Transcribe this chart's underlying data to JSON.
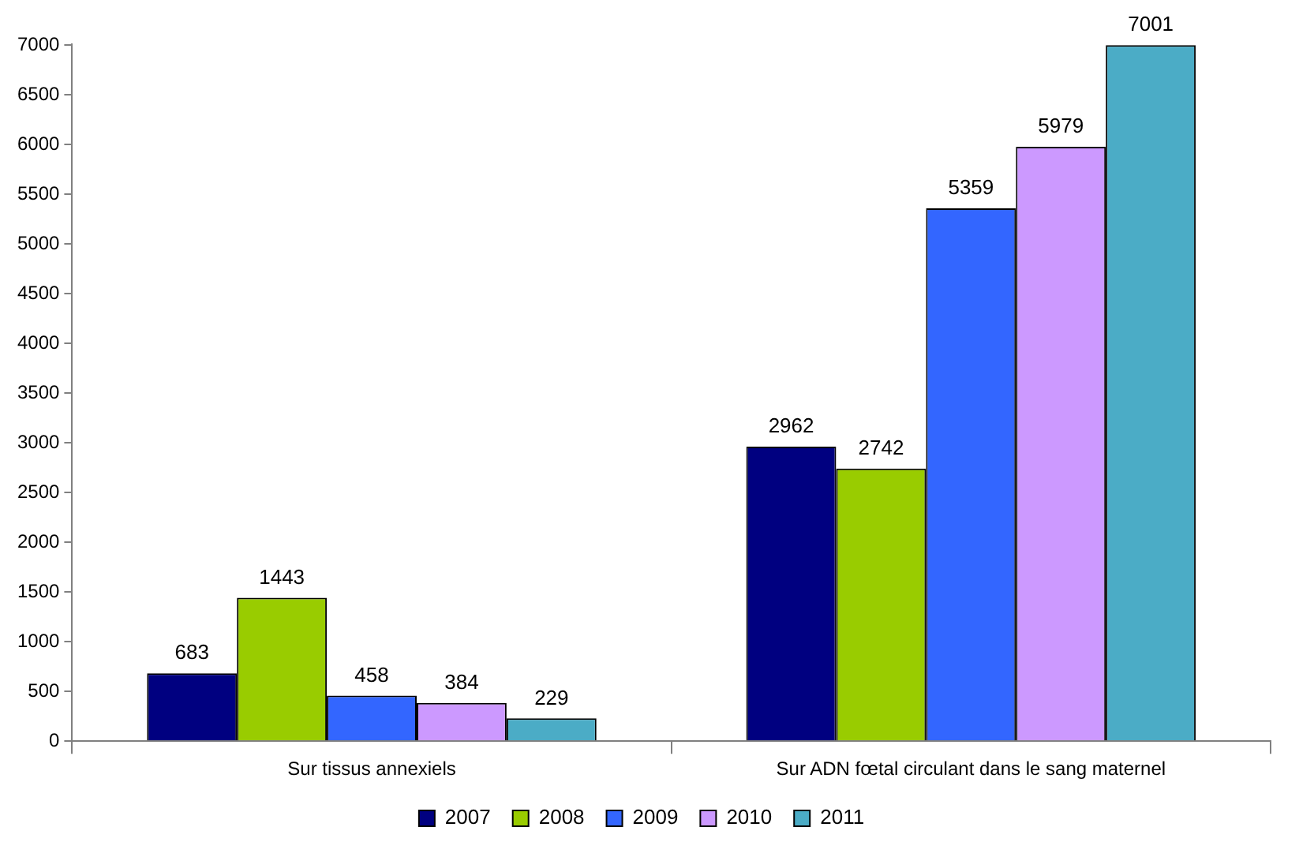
{
  "chart_data": {
    "type": "bar",
    "categories": [
      "Sur tissus annexiels",
      "Sur ADN fœtal circulant dans le sang maternel"
    ],
    "series": [
      {
        "name": "2007",
        "color": "#000080",
        "values": [
          683,
          2962
        ]
      },
      {
        "name": "2008",
        "color": "#99cc00",
        "values": [
          1443,
          2742
        ]
      },
      {
        "name": "2009",
        "color": "#3366ff",
        "values": [
          458,
          5359
        ]
      },
      {
        "name": "2010",
        "color": "#cc99ff",
        "values": [
          384,
          5979
        ]
      },
      {
        "name": "2011",
        "color": "#4bacc6",
        "values": [
          229,
          7001
        ]
      }
    ],
    "ylim": [
      0,
      7010
    ],
    "yticks": [
      0,
      500,
      1000,
      1500,
      2000,
      2500,
      3000,
      3500,
      4000,
      4500,
      5000,
      5500,
      6000,
      6500,
      7000
    ],
    "grid": false,
    "legend": "bottom",
    "data_labels": true
  }
}
